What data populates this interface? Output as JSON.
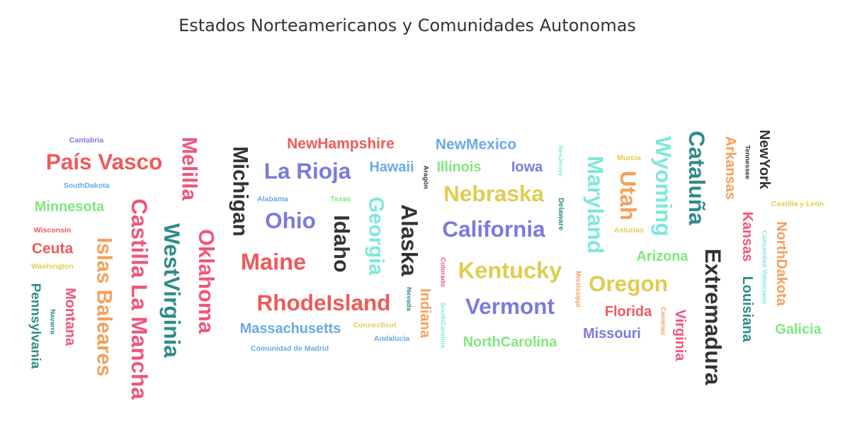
{
  "chart_data": {
    "type": "wordcloud",
    "title": "Estados Norteamericanos y Comunidades Autonomas",
    "colors": {
      "red": "#ee5a5a",
      "blue": "#7a7ae0",
      "green": "#7ee87e",
      "pink": "#f0557a",
      "teal": "#2e8b8b",
      "dark": "#333333",
      "orange": "#f5a05a",
      "yellow": "#e0cc50",
      "cyan": "#7fe8dc",
      "lightblue": "#6aa8e8"
    },
    "words": [
      {
        "text": "País Vasco",
        "color": "red",
        "weight": 30,
        "rotation": 0
      },
      {
        "text": "Cantabria",
        "color": "blue",
        "weight": 10,
        "rotation": 0
      },
      {
        "text": "SouthDakota",
        "color": "lightblue",
        "weight": 10,
        "rotation": 0
      },
      {
        "text": "Minnesota",
        "color": "green",
        "weight": 19,
        "rotation": 0
      },
      {
        "text": "Wisconsin",
        "color": "red",
        "weight": 10,
        "rotation": 0
      },
      {
        "text": "Ceuta",
        "color": "red",
        "weight": 20,
        "rotation": 0
      },
      {
        "text": "Washington",
        "color": "yellow",
        "weight": 10,
        "rotation": 0
      },
      {
        "text": "Pennsylvania",
        "color": "teal",
        "weight": 18,
        "rotation": 90
      },
      {
        "text": "Navarra",
        "color": "teal",
        "weight": 9,
        "rotation": 90
      },
      {
        "text": "Montana",
        "color": "pink",
        "weight": 19,
        "rotation": 90
      },
      {
        "text": "Islas Baleares",
        "color": "orange",
        "weight": 28,
        "rotation": 90
      },
      {
        "text": "Castilla La Mancha",
        "color": "pink",
        "weight": 30,
        "rotation": 90
      },
      {
        "text": "Melilla",
        "color": "pink",
        "weight": 28,
        "rotation": 90
      },
      {
        "text": "WestVirginia",
        "color": "teal",
        "weight": 30,
        "rotation": 90
      },
      {
        "text": "Oklahoma",
        "color": "pink",
        "weight": 29,
        "rotation": 90
      },
      {
        "text": "Michigan",
        "color": "dark",
        "weight": 28,
        "rotation": 90
      },
      {
        "text": "NewHampshire",
        "color": "red",
        "weight": 20,
        "rotation": 0
      },
      {
        "text": "La Rioja",
        "color": "blue",
        "weight": 30,
        "rotation": 0
      },
      {
        "text": "Alabama",
        "color": "lightblue",
        "weight": 10,
        "rotation": 0
      },
      {
        "text": "Texas",
        "color": "green",
        "weight": 10,
        "rotation": 0
      },
      {
        "text": "Ohio",
        "color": "blue",
        "weight": 30,
        "rotation": 0
      },
      {
        "text": "Maine",
        "color": "red",
        "weight": 31,
        "rotation": 0
      },
      {
        "text": "Idaho",
        "color": "dark",
        "weight": 29,
        "rotation": 90
      },
      {
        "text": "RhodeIsland",
        "color": "red",
        "weight": 30,
        "rotation": 0
      },
      {
        "text": "Massachusetts",
        "color": "lightblue",
        "weight": 19,
        "rotation": 0
      },
      {
        "text": "Comunidad de Madrid",
        "color": "lightblue",
        "weight": 10,
        "rotation": 0
      },
      {
        "text": "Hawaii",
        "color": "lightblue",
        "weight": 19,
        "rotation": 0
      },
      {
        "text": "Georgia",
        "color": "cyan",
        "weight": 28,
        "rotation": 90
      },
      {
        "text": "Alaska",
        "color": "dark",
        "weight": 30,
        "rotation": 90
      },
      {
        "text": "Aragón",
        "color": "dark",
        "weight": 9,
        "rotation": 90
      },
      {
        "text": "Nevada",
        "color": "teal",
        "weight": 9,
        "rotation": 90
      },
      {
        "text": "Connecticut",
        "color": "yellow",
        "weight": 10,
        "rotation": 0
      },
      {
        "text": "Andalucía",
        "color": "lightblue",
        "weight": 10,
        "rotation": 0
      },
      {
        "text": "NewMexico",
        "color": "lightblue",
        "weight": 20,
        "rotation": 0
      },
      {
        "text": "Illinois",
        "color": "green",
        "weight": 19,
        "rotation": 0
      },
      {
        "text": "Iowa",
        "color": "blue",
        "weight": 19,
        "rotation": 0
      },
      {
        "text": "Nebraska",
        "color": "yellow",
        "weight": 30,
        "rotation": 0
      },
      {
        "text": "California",
        "color": "blue",
        "weight": 30,
        "rotation": 0
      },
      {
        "text": "Colorado",
        "color": "pink",
        "weight": 9,
        "rotation": 90
      },
      {
        "text": "Kentucky",
        "color": "yellow",
        "weight": 31,
        "rotation": 0
      },
      {
        "text": "Indiana",
        "color": "orange",
        "weight": 19,
        "rotation": 90
      },
      {
        "text": "SouthCarolina",
        "color": "cyan",
        "weight": 9,
        "rotation": 90
      },
      {
        "text": "Vermont",
        "color": "blue",
        "weight": 30,
        "rotation": 0
      },
      {
        "text": "NorthCarolina",
        "color": "green",
        "weight": 19,
        "rotation": 0
      },
      {
        "text": "NewJersey",
        "color": "cyan",
        "weight": 8,
        "rotation": 90
      },
      {
        "text": "Delaware",
        "color": "teal",
        "weight": 10,
        "rotation": 90
      },
      {
        "text": "Mississippi",
        "color": "orange",
        "weight": 9,
        "rotation": 90
      },
      {
        "text": "Maryland",
        "color": "cyan",
        "weight": 30,
        "rotation": 90
      },
      {
        "text": "Murcia",
        "color": "yellow",
        "weight": 10,
        "rotation": 0
      },
      {
        "text": "Utah",
        "color": "orange",
        "weight": 30,
        "rotation": 90
      },
      {
        "text": "Asturias",
        "color": "yellow",
        "weight": 10,
        "rotation": 0
      },
      {
        "text": "Wyoming",
        "color": "cyan",
        "weight": 30,
        "rotation": 90
      },
      {
        "text": "Arizona",
        "color": "green",
        "weight": 19,
        "rotation": 0
      },
      {
        "text": "Oregon",
        "color": "yellow",
        "weight": 30,
        "rotation": 0
      },
      {
        "text": "Florida",
        "color": "red",
        "weight": 19,
        "rotation": 0
      },
      {
        "text": "Missouri",
        "color": "blue",
        "weight": 19,
        "rotation": 0
      },
      {
        "text": "Canarias",
        "color": "orange",
        "weight": 9,
        "rotation": 90
      },
      {
        "text": "Virginia",
        "color": "pink",
        "weight": 19,
        "rotation": 90
      },
      {
        "text": "Cataluña",
        "color": "teal",
        "weight": 30,
        "rotation": 90
      },
      {
        "text": "Extremadura",
        "color": "dark",
        "weight": 30,
        "rotation": 90
      },
      {
        "text": "Arkansas",
        "color": "orange",
        "weight": 19,
        "rotation": 90
      },
      {
        "text": "Tennessee",
        "color": "dark",
        "weight": 9,
        "rotation": 90
      },
      {
        "text": "NewYork",
        "color": "dark",
        "weight": 19,
        "rotation": 90
      },
      {
        "text": "Kansas",
        "color": "pink",
        "weight": 19,
        "rotation": 90
      },
      {
        "text": "Louisiana",
        "color": "teal",
        "weight": 19,
        "rotation": 90
      },
      {
        "text": "Comunidad Valenciana",
        "color": "cyan",
        "weight": 9,
        "rotation": 90
      },
      {
        "text": "NorthDakota",
        "color": "orange",
        "weight": 19,
        "rotation": 90
      },
      {
        "text": "Castilla y León",
        "color": "yellow",
        "weight": 10,
        "rotation": 0
      },
      {
        "text": "Galicia",
        "color": "green",
        "weight": 19,
        "rotation": 0
      }
    ]
  }
}
